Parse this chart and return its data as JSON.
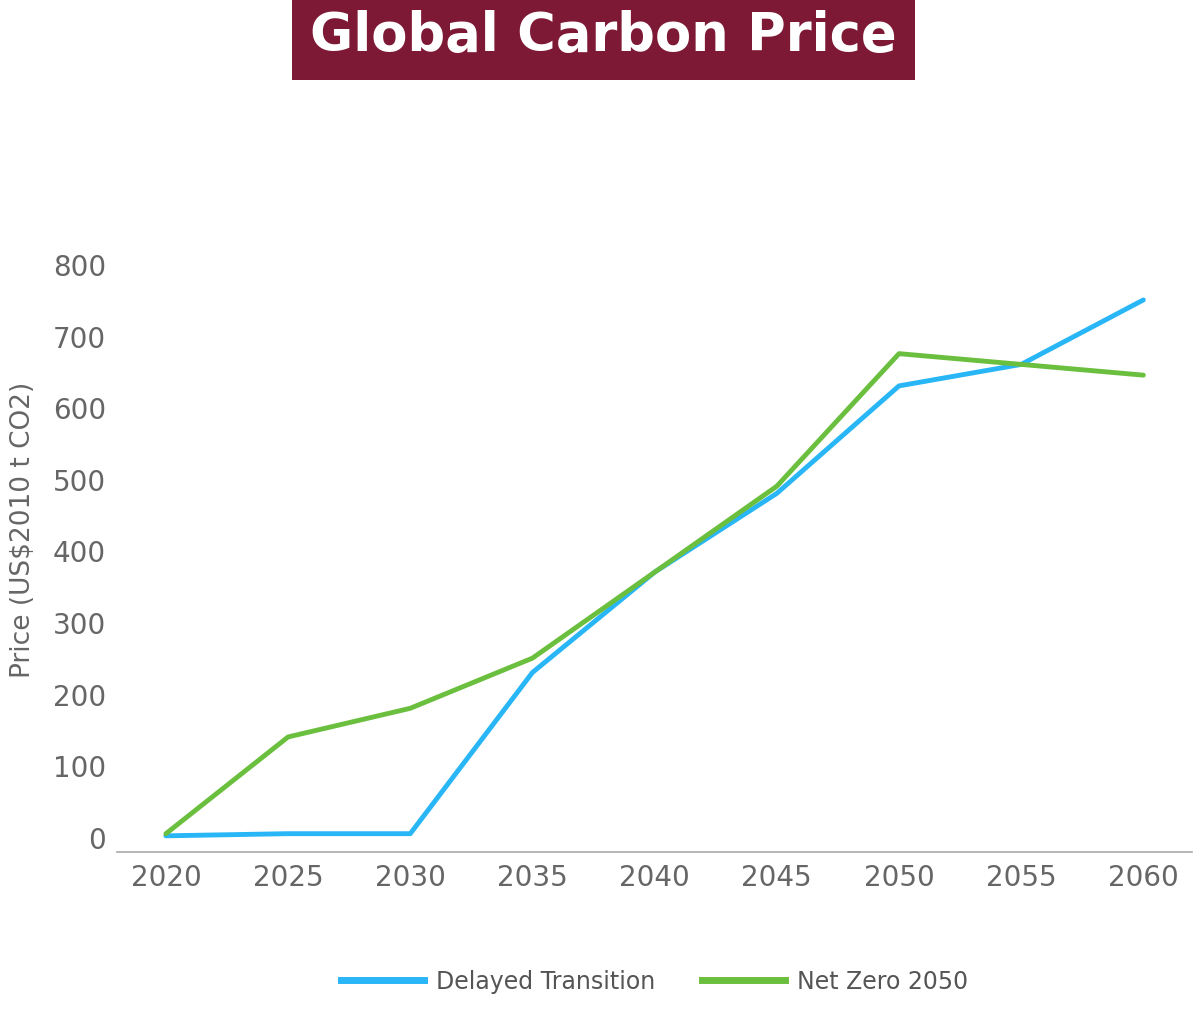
{
  "title": "Global Carbon Price",
  "title_bg_color": "#7D1935",
  "title_text_color": "#FFFFFF",
  "ylabel": "Price (US$2010 t CO2)",
  "background_color": "#FFFFFF",
  "plot_bg_color": "#FFFFFF",
  "xlim": [
    2018,
    2062
  ],
  "ylim": [
    -20,
    880
  ],
  "xticks": [
    2020,
    2025,
    2030,
    2035,
    2040,
    2045,
    2050,
    2055,
    2060
  ],
  "yticks": [
    0,
    100,
    200,
    300,
    400,
    500,
    600,
    700,
    800
  ],
  "delayed_transition": {
    "x": [
      2020,
      2025,
      2030,
      2035,
      2040,
      2045,
      2050,
      2055,
      2060
    ],
    "y": [
      2,
      5,
      5,
      230,
      370,
      480,
      630,
      660,
      750
    ],
    "color": "#29B6F6",
    "linewidth": 3.5,
    "label": "Delayed Transition"
  },
  "net_zero_2050": {
    "x": [
      2020,
      2025,
      2030,
      2035,
      2040,
      2045,
      2050,
      2055,
      2060
    ],
    "y": [
      5,
      140,
      180,
      250,
      370,
      490,
      675,
      660,
      645
    ],
    "color": "#6BBF3E",
    "linewidth": 3.5,
    "label": "Net Zero 2050"
  },
  "legend_fontsize": 17,
  "tick_fontsize": 20,
  "ylabel_fontsize": 19,
  "title_fontsize": 38
}
